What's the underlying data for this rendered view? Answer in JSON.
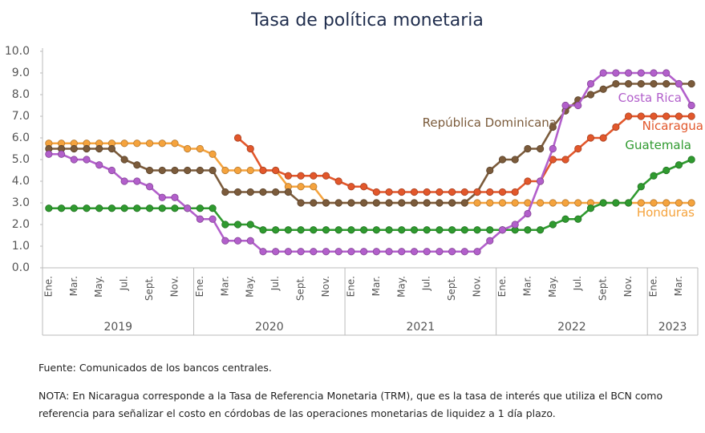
{
  "chart_data": {
    "type": "line",
    "title": "Tasa de política monetaria",
    "categories": [
      "Ene.",
      null,
      "Mar.",
      null,
      "May.",
      null,
      "Jul.",
      null,
      "Sept.",
      null,
      "Nov.",
      null,
      "Ene.",
      null,
      "Mar.",
      null,
      "May.",
      null,
      "Jul.",
      null,
      "Sept.",
      null,
      "Nov.",
      null,
      "Ene.",
      null,
      "Mar.",
      null,
      "May.",
      null,
      "Jul.",
      null,
      "Sept.",
      null,
      "Nov.",
      null,
      "Ene.",
      null,
      "Mar.",
      null,
      "May.",
      null,
      "Jul.",
      null,
      "Sept.",
      null,
      "Nov.",
      null,
      "Ene.",
      null,
      "Mar.",
      null
    ],
    "years": [
      "2019",
      "2020",
      "2021",
      "2022",
      "2023"
    ],
    "ylim": [
      0,
      10
    ],
    "yticks": [
      {
        "value": 0,
        "label": "0.0"
      },
      {
        "value": 1,
        "label": "1.0"
      },
      {
        "value": 2,
        "label": "2.0"
      },
      {
        "value": 3,
        "label": "3.0"
      },
      {
        "value": 4,
        "label": "4.0"
      },
      {
        "value": 5,
        "label": "5.0"
      },
      {
        "value": 6,
        "label": "6.0"
      },
      {
        "value": 7,
        "label": "7.0"
      },
      {
        "value": 8,
        "label": "8.0"
      },
      {
        "value": 9,
        "label": "9.0"
      },
      {
        "value": 10,
        "label": "10.0"
      }
    ],
    "series": [
      {
        "name": "Costa Rica",
        "color": "#b25fcb",
        "values": [
          5.25,
          5.25,
          5.0,
          5.0,
          4.75,
          4.5,
          4.0,
          4.0,
          3.75,
          3.25,
          3.25,
          2.75,
          2.25,
          2.25,
          1.25,
          1.25,
          1.25,
          0.75,
          0.75,
          0.75,
          0.75,
          0.75,
          0.75,
          0.75,
          0.75,
          0.75,
          0.75,
          0.75,
          0.75,
          0.75,
          0.75,
          0.75,
          0.75,
          0.75,
          0.75,
          1.25,
          1.75,
          2.0,
          2.5,
          4.0,
          5.5,
          7.5,
          7.5,
          8.5,
          9.0,
          9.0,
          9.0,
          9.0,
          9.0,
          9.0,
          8.5,
          7.5
        ]
      },
      {
        "name": "Nicaragua",
        "color": "#e2572b",
        "values": [
          null,
          null,
          null,
          null,
          null,
          null,
          null,
          null,
          null,
          null,
          null,
          null,
          null,
          null,
          null,
          6.0,
          5.5,
          4.5,
          4.5,
          4.25,
          4.25,
          4.25,
          4.25,
          4.0,
          3.75,
          3.75,
          3.5,
          3.5,
          3.5,
          3.5,
          3.5,
          3.5,
          3.5,
          3.5,
          3.5,
          3.5,
          3.5,
          3.5,
          4.0,
          4.0,
          5.0,
          5.0,
          5.5,
          6.0,
          6.0,
          6.5,
          7.0,
          7.0,
          7.0,
          7.0,
          7.0,
          7.0
        ]
      },
      {
        "name": "República Dominicana",
        "color": "#7b5b3b",
        "values": [
          5.5,
          5.5,
          5.5,
          5.5,
          5.5,
          5.5,
          5.0,
          4.75,
          4.5,
          4.5,
          4.5,
          4.5,
          4.5,
          4.5,
          3.5,
          3.5,
          3.5,
          3.5,
          3.5,
          3.5,
          3.0,
          3.0,
          3.0,
          3.0,
          3.0,
          3.0,
          3.0,
          3.0,
          3.0,
          3.0,
          3.0,
          3.0,
          3.0,
          3.0,
          3.5,
          4.5,
          5.0,
          5.0,
          5.5,
          5.5,
          6.5,
          7.25,
          7.75,
          8.0,
          8.25,
          8.5,
          8.5,
          8.5,
          8.5,
          8.5,
          8.5,
          8.5
        ]
      },
      {
        "name": "Guatemala",
        "color": "#2f9a2f",
        "values": [
          2.75,
          2.75,
          2.75,
          2.75,
          2.75,
          2.75,
          2.75,
          2.75,
          2.75,
          2.75,
          2.75,
          2.75,
          2.75,
          2.75,
          2.0,
          2.0,
          2.0,
          1.75,
          1.75,
          1.75,
          1.75,
          1.75,
          1.75,
          1.75,
          1.75,
          1.75,
          1.75,
          1.75,
          1.75,
          1.75,
          1.75,
          1.75,
          1.75,
          1.75,
          1.75,
          1.75,
          1.75,
          1.75,
          1.75,
          1.75,
          2.0,
          2.25,
          2.25,
          2.75,
          3.0,
          3.0,
          3.0,
          3.75,
          4.25,
          4.5,
          4.75,
          5.0
        ]
      },
      {
        "name": "Honduras",
        "color": "#f5a33d",
        "values": [
          5.75,
          5.75,
          5.75,
          5.75,
          5.75,
          5.75,
          5.75,
          5.75,
          5.75,
          5.75,
          5.75,
          5.5,
          5.5,
          5.25,
          4.5,
          4.5,
          4.5,
          4.5,
          4.5,
          3.75,
          3.75,
          3.75,
          3.0,
          3.0,
          3.0,
          3.0,
          3.0,
          3.0,
          3.0,
          3.0,
          3.0,
          3.0,
          3.0,
          3.0,
          3.0,
          3.0,
          3.0,
          3.0,
          3.0,
          3.0,
          3.0,
          3.0,
          3.0,
          3.0,
          3.0,
          3.0,
          3.0,
          3.0,
          3.0,
          3.0,
          3.0,
          3.0
        ]
      }
    ],
    "source": "Fuente: Comunicados de los bancos centrales.",
    "note_lines": [
      "NOTA: En Nicaragua corresponde a la Tasa de Referencia Monetaria (TRM), que es la tasa de interés que utiliza el BCN como",
      "referencia para señalizar el costo en córdobas de las operaciones monetarias de liquidez a 1 día plazo."
    ]
  }
}
